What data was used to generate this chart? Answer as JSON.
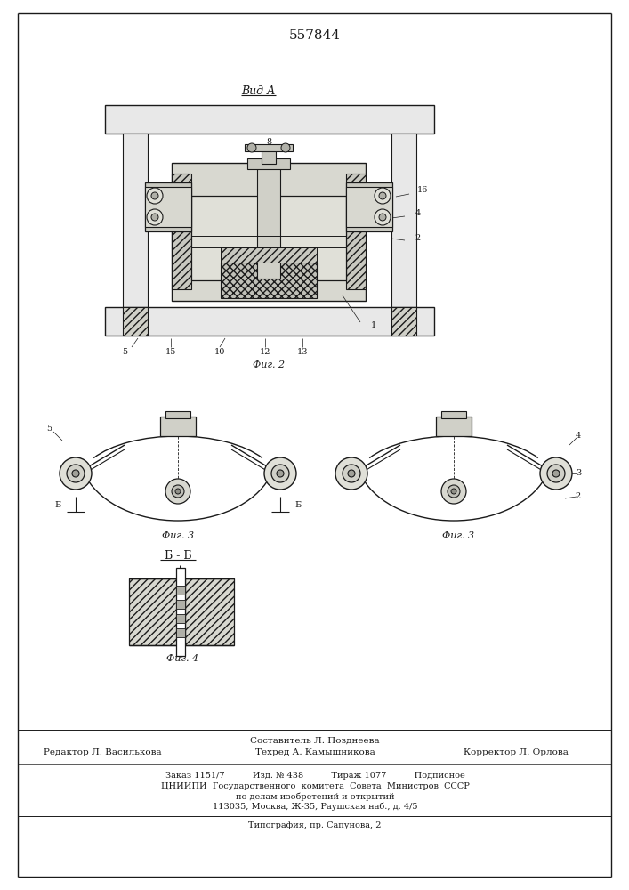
{
  "patent_number": "557844",
  "background_color": "#ffffff",
  "line_color": "#1a1a1a",
  "view_label": "Вид А",
  "fig2_label": "Фиг. 2",
  "fig3_label": "Фиг. 3",
  "fig4_label": "Фиг. 4",
  "section_label": "Б - Б",
  "footer_line1": "Составитель Л. Позднеева",
  "footer_line2_left": "Редактор Л. Василькова",
  "footer_line2_mid": "Техред А. Камышникова",
  "footer_line2_right": "Корректор Л. Орлова",
  "footer_line3": "Заказ 1151/7          Изд. № 438          Тираж 1077          Подписное",
  "footer_line4": "ЦНИИПИ  Государственного  комитета  Совета  Министров  СССР",
  "footer_line5": "по делам изобретений и открытий",
  "footer_line6": "113035, Москва, Ж-35, Раушская наб., д. 4/5",
  "footer_line7": "Типография, пр. Сапунова, 2"
}
